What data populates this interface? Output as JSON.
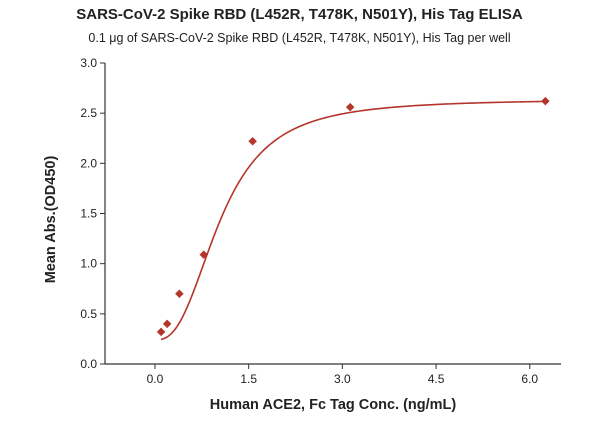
{
  "chart_data": {
    "type": "scatter",
    "title": "SARS-CoV-2 Spike RBD (L452R, T478K, N501Y), His Tag ELISA",
    "subtitle": "0.1 μg of SARS-CoV-2 Spike RBD (L452R, T478K, N501Y), His Tag per well",
    "xlabel": "Human ACE2, Fc Tag Conc. (ng/mL)",
    "ylabel": "Mean Abs.(OD450)",
    "xlim": [
      -0.8,
      6.5
    ],
    "ylim": [
      0,
      3.0
    ],
    "xticks": [
      0.0,
      1.5,
      3.0,
      4.5,
      6.0
    ],
    "xtick_labels": [
      "0.0",
      "1.5",
      "3.0",
      "4.5",
      "6.0"
    ],
    "yticks": [
      0.0,
      0.5,
      1.0,
      1.5,
      2.0,
      2.5,
      3.0
    ],
    "ytick_labels": [
      "0.0",
      "0.5",
      "1.0",
      "1.5",
      "2.0",
      "2.5",
      "3.0"
    ],
    "grid": false,
    "color": "#b5352b",
    "series": [
      {
        "marker": "diamond",
        "x": [
          0.098,
          0.195,
          0.391,
          0.781,
          1.563,
          3.125,
          6.25
        ],
        "y": [
          0.32,
          0.4,
          0.7,
          1.09,
          2.22,
          2.56,
          2.62
        ]
      }
    ],
    "fit_curve": {
      "type": "4PL",
      "bottom": 0.24,
      "top": 2.64,
      "ec50": 1.05,
      "hill": 2.6
    }
  }
}
